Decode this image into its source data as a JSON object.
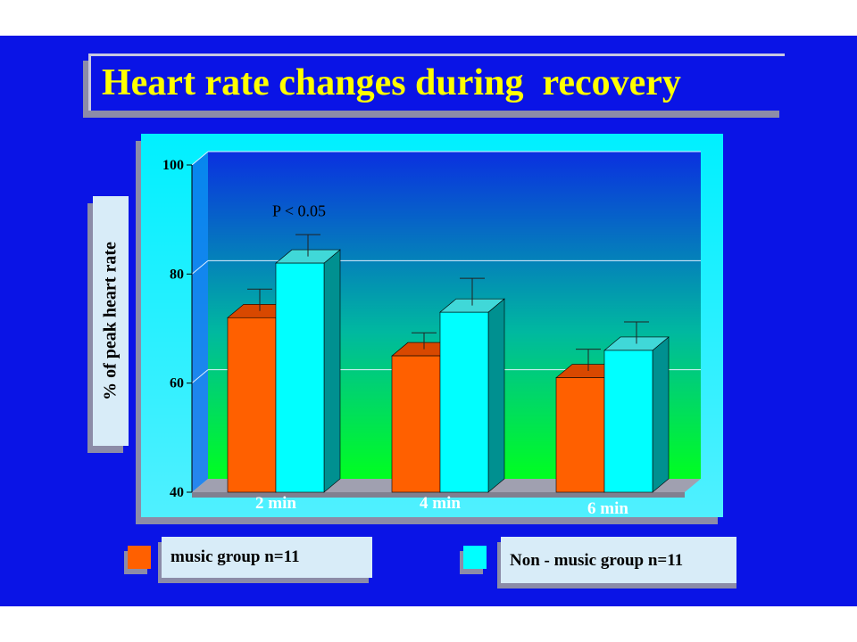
{
  "title": "Heart rate changes during  recovery",
  "colors": {
    "background": "#0a14e6",
    "title": "#ffff00",
    "music": "#ff6000",
    "nonmusic": "#00ffff"
  },
  "chart_data": {
    "type": "bar",
    "title": "Heart rate changes during  recovery",
    "ylabel": "%  of  peak  heart  rate",
    "xlabel": "",
    "categories": [
      "2 min",
      "4 min",
      "6 min"
    ],
    "ylim": [
      40,
      100
    ],
    "yticks": [
      "100",
      "80",
      "60",
      "40"
    ],
    "grid": true,
    "legend_position": "bottom",
    "series": [
      {
        "name": "music group n=11",
        "values": [
          72,
          65,
          61
        ],
        "error": [
          4,
          3,
          4
        ],
        "color": "#ff6000"
      },
      {
        "name": "Non - music group n=11",
        "values": [
          82,
          73,
          66
        ],
        "error": [
          4,
          5,
          4
        ],
        "color": "#00ffff"
      }
    ],
    "annotations": [
      {
        "text": "P < 0.05",
        "category": "2 min"
      }
    ]
  }
}
